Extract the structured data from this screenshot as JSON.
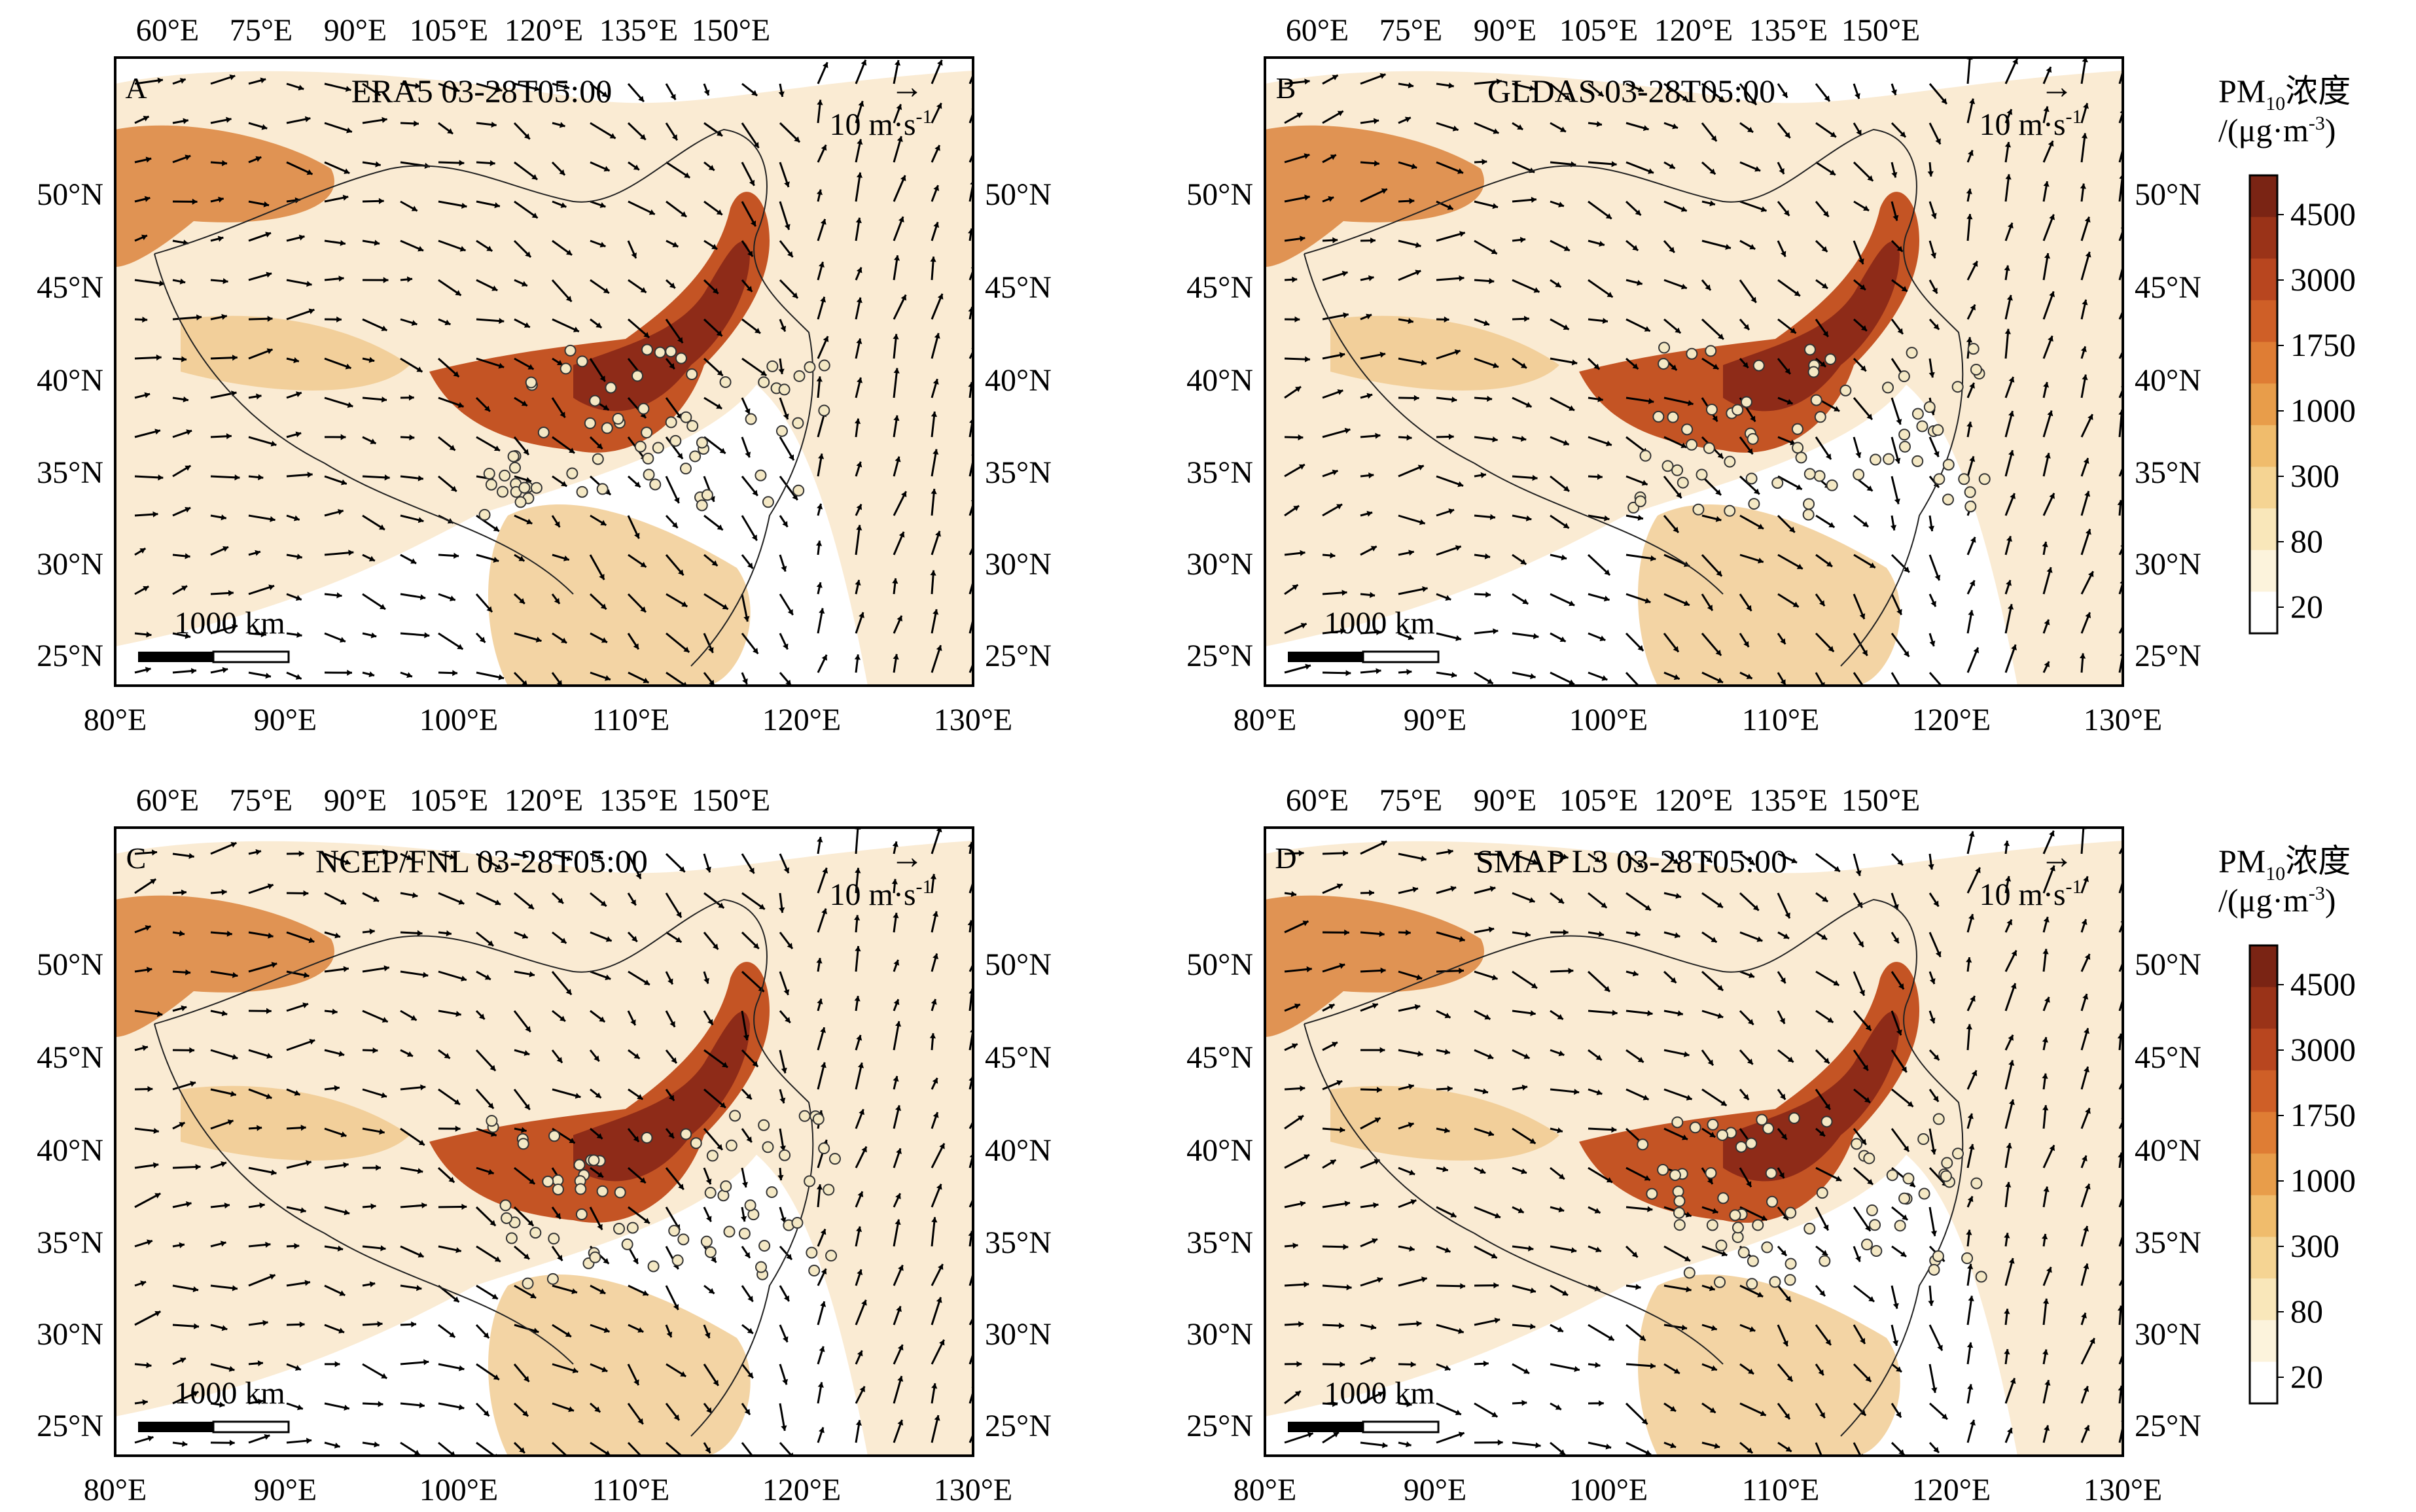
{
  "top_ticks": [
    "60°E",
    "75°E",
    "90°E",
    "105°E",
    "120°E",
    "135°E",
    "150°E"
  ],
  "bottom_ticks": [
    "80°E",
    "90°E",
    "100°E",
    "110°E",
    "120°E",
    "130°E"
  ],
  "lat_ticks": [
    "50°N",
    "45°N",
    "40°N",
    "35°N",
    "30°N",
    "25°N"
  ],
  "wind_ref": {
    "arrow": "→",
    "label": "10 m·s",
    "sup": "-1"
  },
  "scale_label": "1000 km",
  "panels": [
    {
      "letter": "A",
      "title": "ERA5 03-28T05:00"
    },
    {
      "letter": "B",
      "title": "GLDAS 03-28T05:00"
    },
    {
      "letter": "C",
      "title": "NCEP/FNL 03-28T05:00"
    },
    {
      "letter": "D",
      "title": "SMAP L3 03-28T05:00"
    }
  ],
  "colorbar": {
    "l1": "PM",
    "sub": "10",
    "l1b": "浓度",
    "l2a": "/(μg·m",
    "l2sup": "-3",
    "l2b": ")",
    "ticks": [
      "4500",
      "3000",
      "1750",
      "1000",
      "300",
      "80",
      "20"
    ],
    "colors": [
      "#7a2414",
      "#9a3318",
      "#b8461f",
      "#cf5f27",
      "#df7d34",
      "#e89d4a",
      "#f0bc6c",
      "#f5d493",
      "#f9e7ba",
      "#fcf3dc",
      "#ffffff"
    ]
  },
  "fill_colors": {
    "dark": "#8e2b18",
    "mid": "#c45424",
    "orange": "#dd8a45",
    "light": "#f2cf9a",
    "pale": "#f9e6c8"
  }
}
